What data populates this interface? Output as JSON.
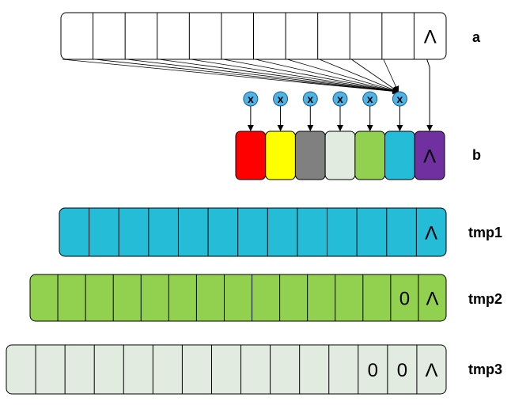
{
  "arrays": {
    "a": {
      "label": "a",
      "fill": "#ffffff",
      "cells": [
        "",
        "",
        "",
        "",
        "",
        "",
        "",
        "",
        "",
        "",
        "",
        "Λ"
      ]
    },
    "b": {
      "label": "b",
      "cells": [
        "",
        "",
        "",
        "",
        "",
        "",
        "Λ"
      ],
      "colors": [
        "#ff0000",
        "#ffff00",
        "#808080",
        "#e2ebe0",
        "#92d050",
        "#25bcd8",
        "#7030a0"
      ]
    },
    "tmp1": {
      "label": "tmp1",
      "fill": "#25bcd8",
      "cells": [
        "",
        "",
        "",
        "",
        "",
        "",
        "",
        "",
        "",
        "",
        "",
        "",
        "Λ"
      ]
    },
    "tmp2": {
      "label": "tmp2",
      "fill": "#92d050",
      "cells": [
        "",
        "",
        "",
        "",
        "",
        "",
        "",
        "",
        "",
        "",
        "",
        "",
        "",
        "0",
        "Λ"
      ]
    },
    "tmp3": {
      "label": "tmp3",
      "fill": "#e2ebe0",
      "cells": [
        "",
        "",
        "",
        "",
        "",
        "",
        "",
        "",
        "",
        "",
        "",
        "",
        "0",
        "0",
        "Λ"
      ]
    }
  },
  "multipliers": {
    "symbol": "x",
    "count": 6,
    "color": "#4fb3e6"
  }
}
